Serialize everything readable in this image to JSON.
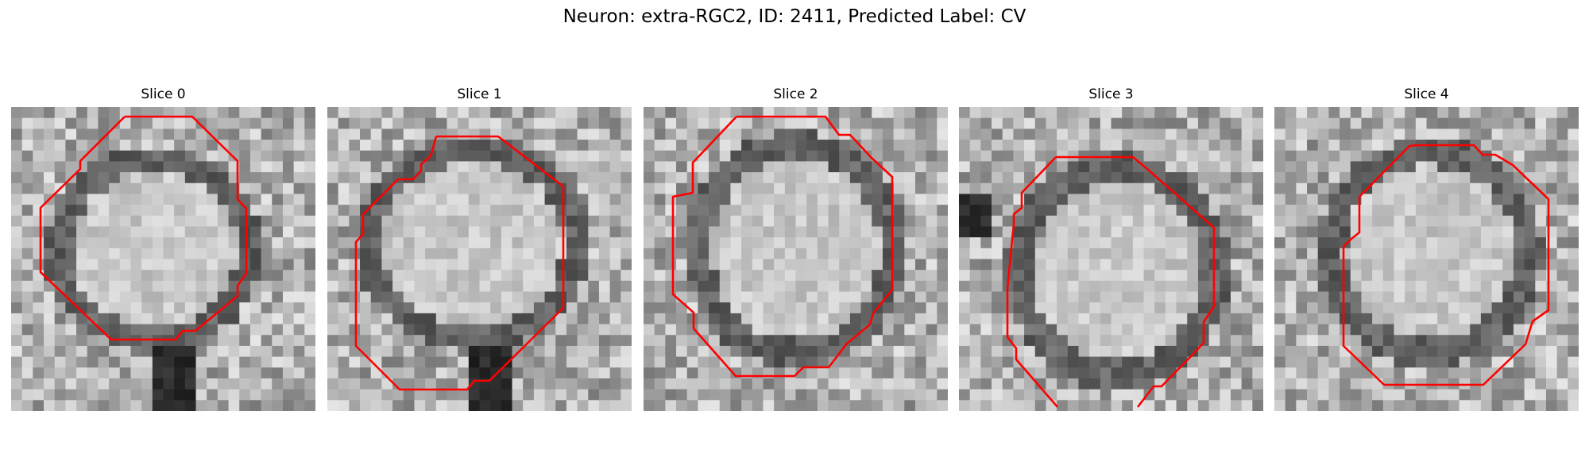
{
  "figure": {
    "title": "Neuron: extra-RGC2, ID: 2411, Predicted Label: CV"
  },
  "panels": [
    {
      "title": "Slice 0"
    },
    {
      "title": "Slice 1"
    },
    {
      "title": "Slice 2"
    },
    {
      "title": "Slice 3"
    },
    {
      "title": "Slice 4"
    }
  ],
  "colors": {
    "contour": "#ff0000",
    "background": "#ffffff"
  }
}
